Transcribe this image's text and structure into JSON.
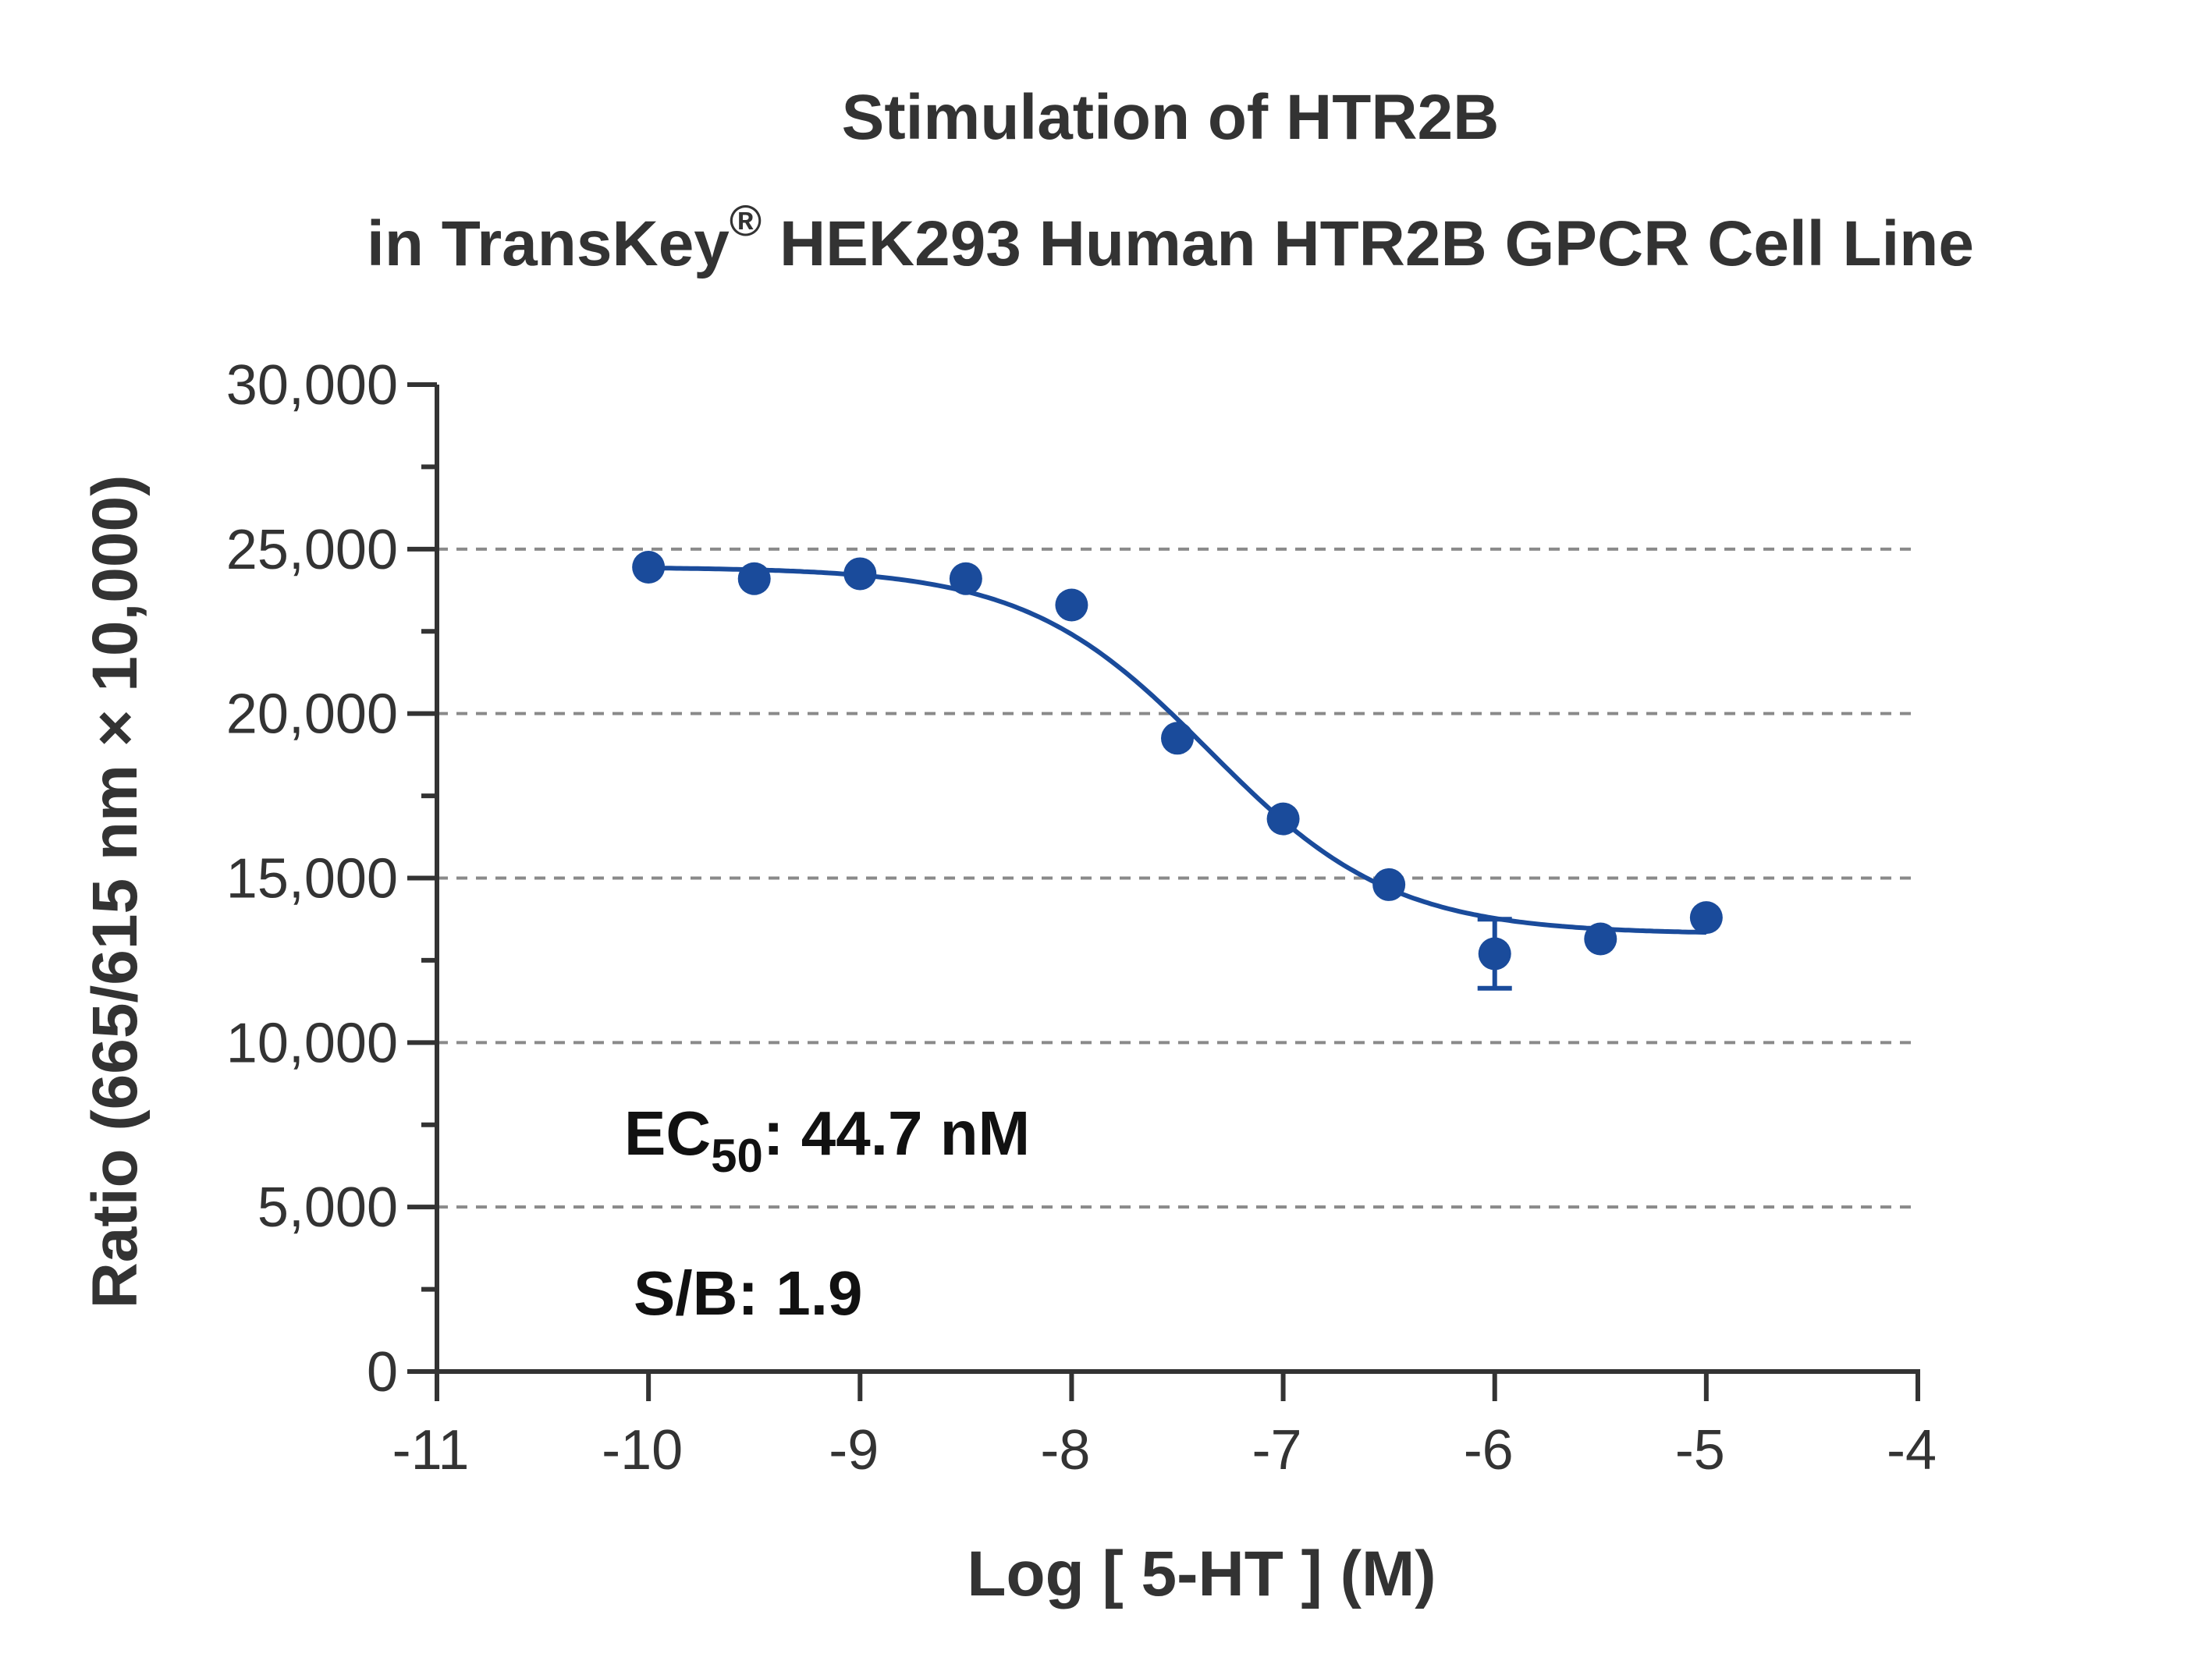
{
  "chart_data": {
    "type": "scatter",
    "title_line1": "Stimulation of  HTR2B",
    "title_line2_prefix": "in TransKey",
    "title_line2_sup": "®",
    "title_line2_suffix": " HEK293 Human HTR2B GPCR Cell Line",
    "xlabel": "Log [ 5-HT ]  (M)",
    "ylabel": "Ratio (665/615 nm × 10,000)",
    "xlim": [
      -11,
      -4
    ],
    "ylim": [
      0,
      30000
    ],
    "x_ticks": [
      -11,
      -10,
      -9,
      -8,
      -7,
      -6,
      -5,
      -4
    ],
    "x_tick_labels": [
      "-11",
      "-10",
      "-9",
      "-8",
      "-7",
      "-6",
      "-5",
      "-4"
    ],
    "y_ticks": [
      0,
      5000,
      10000,
      15000,
      20000,
      25000,
      30000
    ],
    "y_tick_labels": [
      "0",
      "5,000",
      "10,000",
      "15,000",
      "20,000",
      "25,000",
      "30,000"
    ],
    "y_minor_step": 2500,
    "gridlines_y": [
      5000,
      10000,
      15000,
      20000,
      25000
    ],
    "grid": "horizontal dashed",
    "series": [
      {
        "color": "#1a4b9b",
        "points": [
          {
            "x": -10,
            "y": 24450,
            "err": 0
          },
          {
            "x": -9.5,
            "y": 24100,
            "err": 0
          },
          {
            "x": -9,
            "y": 24250,
            "err": 0
          },
          {
            "x": -8.5,
            "y": 24100,
            "err": 0
          },
          {
            "x": -8,
            "y": 23300,
            "err": 0
          },
          {
            "x": -7.5,
            "y": 19250,
            "err": 0
          },
          {
            "x": -7,
            "y": 16800,
            "err": 0
          },
          {
            "x": -6.5,
            "y": 14800,
            "err": 0
          },
          {
            "x": -6,
            "y": 12700,
            "err": 1050
          },
          {
            "x": -5.5,
            "y": 13150,
            "err": 0
          },
          {
            "x": -5,
            "y": 13800,
            "err": 0
          }
        ],
        "fit": {
          "top": 24450,
          "bottom": 13300,
          "log_ec50": -7.35,
          "hill": -1.0,
          "x_range": [
            -10,
            -5
          ]
        }
      }
    ],
    "annotations": {
      "ec50_prefix": "EC",
      "ec50_sub": "50",
      "ec50_suffix": ": 44.7 nM",
      "sb": "S/B: 1.9"
    }
  }
}
